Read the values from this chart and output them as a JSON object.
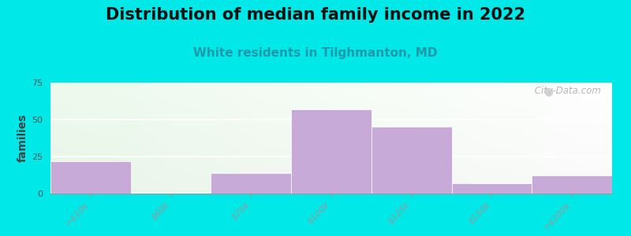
{
  "title": "Distribution of median family income in 2022",
  "subtitle": "White residents in Tilghmanton, MD",
  "ylabel": "families",
  "categories": [
    ">$10k",
    "$60k",
    "$75k",
    "$100k",
    "$125k",
    "$150k",
    ">$200k"
  ],
  "values": [
    22,
    0,
    14,
    57,
    45,
    7,
    12
  ],
  "bar_color": "#c8aad8",
  "bar_edge_color": "#c8aad8",
  "ylim": [
    0,
    75
  ],
  "yticks": [
    0,
    25,
    50,
    75
  ],
  "background_outer": "#00e8e8",
  "title_fontsize": 15,
  "subtitle_fontsize": 11,
  "title_color": "#111111",
  "subtitle_color": "#2299aa",
  "ylabel_fontsize": 10,
  "tick_fontsize": 8,
  "tick_color": "#00aaaa",
  "watermark": " City-Data.com"
}
